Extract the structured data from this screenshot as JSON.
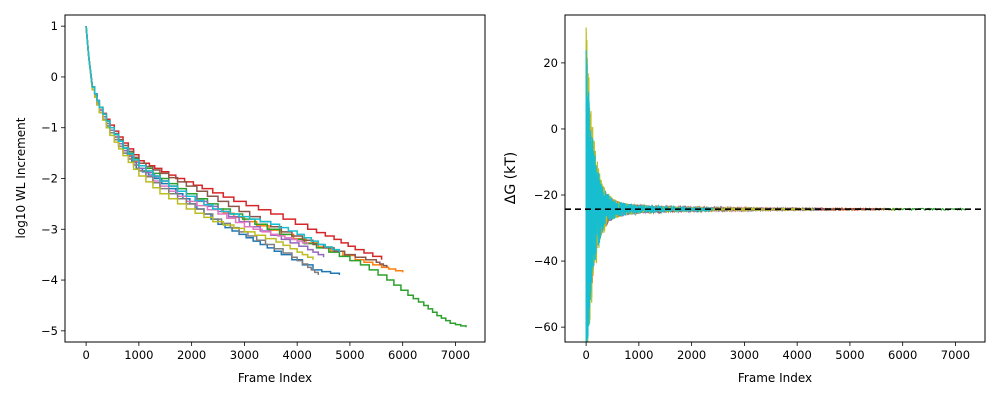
{
  "chart_data": [
    {
      "type": "line",
      "xlabel": "Frame Index",
      "ylabel": "log10 WL Increment",
      "xlim": [
        -400,
        7560
      ],
      "ylim": [
        -5.22,
        1.22
      ],
      "xticks": [
        0,
        1000,
        2000,
        3000,
        4000,
        5000,
        6000,
        7000
      ],
      "yticks": [
        -5,
        -4,
        -3,
        -2,
        -1,
        0,
        1
      ],
      "grid": false,
      "step": true,
      "series_values_description": "",
      "series": [
        {
          "color": "#1f77b4",
          "values": [
            [
              0,
              1.0
            ],
            [
              50,
              0.4
            ],
            [
              120,
              -0.2
            ],
            [
              250,
              -0.6
            ],
            [
              450,
              -1.0
            ],
            [
              700,
              -1.4
            ],
            [
              950,
              -1.8
            ],
            [
              1300,
              -2.0
            ],
            [
              1700,
              -2.3
            ],
            [
              2100,
              -2.6
            ],
            [
              2500,
              -2.9
            ],
            [
              2900,
              -3.1
            ],
            [
              3300,
              -3.3
            ],
            [
              3700,
              -3.5
            ],
            [
              4300,
              -3.8
            ],
            [
              4800,
              -3.9
            ]
          ]
        },
        {
          "color": "#ff7f0e",
          "values": [
            [
              0,
              1.0
            ],
            [
              50,
              0.4
            ],
            [
              120,
              -0.25
            ],
            [
              250,
              -0.65
            ],
            [
              450,
              -1.05
            ],
            [
              700,
              -1.45
            ],
            [
              1000,
              -1.75
            ],
            [
              1400,
              -2.05
            ],
            [
              1900,
              -2.35
            ],
            [
              2400,
              -2.6
            ],
            [
              3000,
              -2.85
            ],
            [
              3700,
              -3.1
            ],
            [
              4400,
              -3.35
            ],
            [
              5100,
              -3.6
            ],
            [
              5600,
              -3.75
            ],
            [
              6000,
              -3.85
            ]
          ]
        },
        {
          "color": "#2ca02c",
          "values": [
            [
              0,
              1.0
            ],
            [
              50,
              0.4
            ],
            [
              120,
              -0.2
            ],
            [
              250,
              -0.6
            ],
            [
              450,
              -1.0
            ],
            [
              700,
              -1.4
            ],
            [
              1000,
              -1.7
            ],
            [
              1400,
              -2.0
            ],
            [
              1900,
              -2.3
            ],
            [
              2500,
              -2.6
            ],
            [
              3200,
              -2.9
            ],
            [
              3900,
              -3.2
            ],
            [
              4600,
              -3.45
            ],
            [
              5200,
              -3.7
            ],
            [
              5700,
              -4.0
            ],
            [
              6100,
              -4.3
            ],
            [
              6400,
              -4.5
            ],
            [
              6650,
              -4.7
            ],
            [
              6900,
              -4.85
            ],
            [
              7200,
              -4.93
            ]
          ]
        },
        {
          "color": "#d62728",
          "values": [
            [
              0,
              1.0
            ],
            [
              50,
              0.4
            ],
            [
              120,
              -0.2
            ],
            [
              250,
              -0.6
            ],
            [
              450,
              -0.95
            ],
            [
              700,
              -1.3
            ],
            [
              1000,
              -1.65
            ],
            [
              1300,
              -1.8
            ],
            [
              1700,
              -2.0
            ],
            [
              2200,
              -2.2
            ],
            [
              2800,
              -2.45
            ],
            [
              3500,
              -2.7
            ],
            [
              4200,
              -3.0
            ],
            [
              4700,
              -3.2
            ],
            [
              5100,
              -3.4
            ],
            [
              5600,
              -3.6
            ]
          ]
        },
        {
          "color": "#9467bd",
          "values": [
            [
              0,
              1.0
            ],
            [
              50,
              0.4
            ],
            [
              120,
              -0.2
            ],
            [
              250,
              -0.65
            ],
            [
              450,
              -1.05
            ],
            [
              700,
              -1.45
            ],
            [
              1000,
              -1.8
            ],
            [
              1400,
              -2.05
            ],
            [
              1900,
              -2.35
            ],
            [
              2500,
              -2.65
            ],
            [
              3100,
              -2.95
            ],
            [
              3700,
              -3.2
            ],
            [
              4200,
              -3.4
            ],
            [
              4500,
              -3.55
            ]
          ]
        },
        {
          "color": "#8c564b",
          "values": [
            [
              0,
              1.0
            ],
            [
              50,
              0.4
            ],
            [
              120,
              -0.2
            ],
            [
              250,
              -0.6
            ],
            [
              450,
              -1.0
            ],
            [
              700,
              -1.35
            ],
            [
              1000,
              -1.7
            ],
            [
              1400,
              -1.9
            ],
            [
              1900,
              -2.15
            ],
            [
              2500,
              -2.45
            ],
            [
              3100,
              -2.75
            ],
            [
              3700,
              -3.05
            ],
            [
              4300,
              -3.3
            ],
            [
              4900,
              -3.5
            ],
            [
              5500,
              -3.65
            ],
            [
              5700,
              -3.75
            ]
          ]
        },
        {
          "color": "#e377c2",
          "values": [
            [
              0,
              1.0
            ],
            [
              50,
              0.4
            ],
            [
              120,
              -0.25
            ],
            [
              250,
              -0.7
            ],
            [
              450,
              -1.1
            ],
            [
              700,
              -1.5
            ],
            [
              1000,
              -1.85
            ],
            [
              1400,
              -2.15
            ],
            [
              1900,
              -2.45
            ],
            [
              2500,
              -2.7
            ],
            [
              3000,
              -2.95
            ],
            [
              3500,
              -3.1
            ],
            [
              3900,
              -3.2
            ],
            [
              4200,
              -3.3
            ]
          ]
        },
        {
          "color": "#7f7f7f",
          "values": [
            [
              0,
              1.0
            ],
            [
              50,
              0.4
            ],
            [
              120,
              -0.25
            ],
            [
              250,
              -0.7
            ],
            [
              450,
              -1.1
            ],
            [
              700,
              -1.5
            ],
            [
              1000,
              -1.85
            ],
            [
              1400,
              -2.2
            ],
            [
              1900,
              -2.5
            ],
            [
              2400,
              -2.8
            ],
            [
              2900,
              -3.05
            ],
            [
              3400,
              -3.3
            ],
            [
              3900,
              -3.55
            ],
            [
              4200,
              -3.75
            ],
            [
              4400,
              -3.9
            ]
          ]
        },
        {
          "color": "#bcbd22",
          "values": [
            [
              0,
              1.0
            ],
            [
              50,
              0.4
            ],
            [
              120,
              -0.25
            ],
            [
              250,
              -0.7
            ],
            [
              450,
              -1.15
            ],
            [
              700,
              -1.55
            ],
            [
              1000,
              -1.95
            ],
            [
              1400,
              -2.3
            ],
            [
              1900,
              -2.6
            ],
            [
              2400,
              -2.85
            ],
            [
              3000,
              -3.05
            ],
            [
              3600,
              -3.25
            ],
            [
              4000,
              -3.45
            ],
            [
              4300,
              -3.6
            ]
          ]
        },
        {
          "color": "#17becf",
          "values": [
            [
              0,
              1.0
            ],
            [
              50,
              0.4
            ],
            [
              120,
              -0.2
            ],
            [
              250,
              -0.6
            ],
            [
              450,
              -1.0
            ],
            [
              700,
              -1.4
            ],
            [
              1000,
              -1.75
            ],
            [
              1400,
              -2.05
            ],
            [
              1900,
              -2.35
            ],
            [
              2400,
              -2.6
            ],
            [
              2900,
              -2.75
            ],
            [
              3500,
              -2.9
            ],
            [
              4000,
              -3.1
            ],
            [
              4400,
              -3.3
            ],
            [
              4800,
              -3.45
            ]
          ]
        }
      ]
    },
    {
      "type": "line",
      "xlabel": "Frame Index",
      "ylabel": "ΔG (kT)",
      "xlim": [
        -400,
        7560
      ],
      "ylim": [
        -64.5,
        34.5
      ],
      "xticks": [
        0,
        1000,
        2000,
        3000,
        4000,
        5000,
        6000,
        7000
      ],
      "yticks": [
        -60,
        -40,
        -20,
        0,
        20
      ],
      "grid": false,
      "reference_line": {
        "y": -24.3,
        "style": "dashed",
        "color": "#000000"
      },
      "series": [
        {
          "color": "#1f77b4",
          "amplitude": 40,
          "end": 4800
        },
        {
          "color": "#ff7f0e",
          "amplitude": 45,
          "end": 6000
        },
        {
          "color": "#2ca02c",
          "amplitude": 36,
          "end": 7200
        },
        {
          "color": "#d62728",
          "amplitude": 40,
          "end": 5600
        },
        {
          "color": "#9467bd",
          "amplitude": 42,
          "end": 4500
        },
        {
          "color": "#8c564b",
          "amplitude": 36,
          "end": 5700
        },
        {
          "color": "#e377c2",
          "amplitude": 40,
          "end": 4200
        },
        {
          "color": "#7f7f7f",
          "amplitude": 36,
          "end": 4400
        },
        {
          "color": "#bcbd22",
          "amplitude": 54,
          "end": 4300
        },
        {
          "color": "#17becf",
          "amplitude": 46,
          "end": 2400
        }
      ]
    }
  ]
}
